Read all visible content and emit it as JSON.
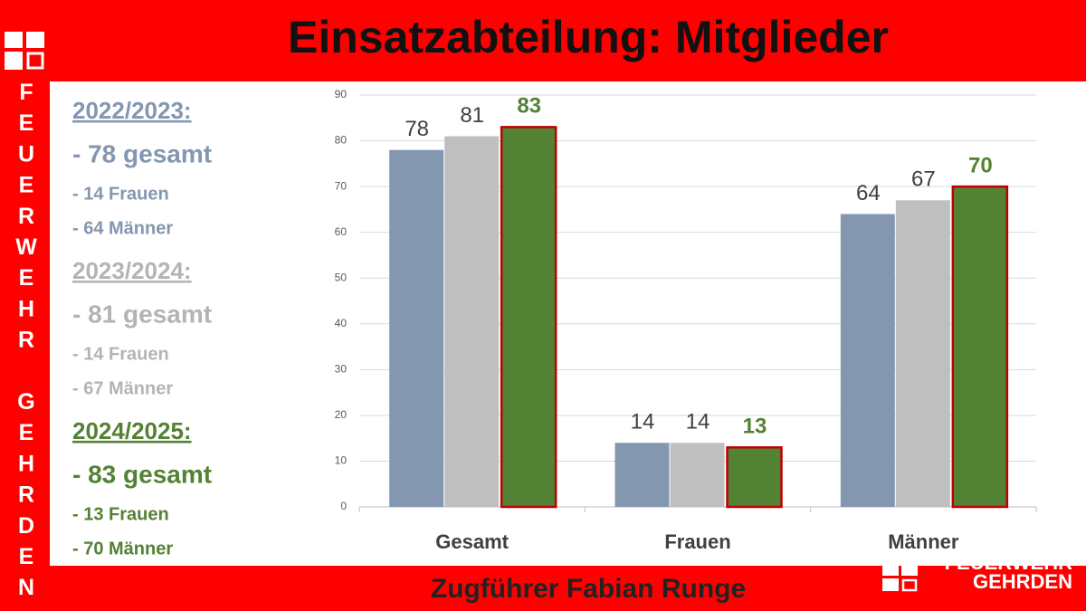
{
  "header": {
    "title": "Einsatzabteilung: Mitglieder"
  },
  "side_text": "FEUERWEHR GEHRDEN",
  "summary": [
    {
      "heading": "2022/2023:",
      "color": "#8497b0",
      "lines": [
        "- 78 gesamt",
        "- 14 Frauen",
        "- 64 Männer"
      ]
    },
    {
      "heading": "2023/2024:",
      "color": "#b4b4b4",
      "lines": [
        "- 81 gesamt",
        "- 14 Frauen",
        "- 67 Männer"
      ]
    },
    {
      "heading": "2024/2025:",
      "color": "#548235",
      "lines": [
        "- 83 gesamt",
        "- 13 Frauen",
        "- 70 Männer"
      ]
    }
  ],
  "footer": {
    "text": "Zugführer Fabian Runge",
    "logo": [
      "FEUERWEHR",
      "GEHRDEN"
    ]
  },
  "chart_data": {
    "type": "bar",
    "categories": [
      "Gesamt",
      "Frauen",
      "Männer"
    ],
    "series": [
      {
        "color": "#8497b0",
        "values": [
          78,
          14,
          64
        ]
      },
      {
        "color": "#bfbfbf",
        "values": [
          81,
          14,
          67
        ]
      },
      {
        "color": "#548235",
        "border": "#c00000",
        "label_color": "#548235",
        "values": [
          83,
          13,
          70
        ]
      }
    ],
    "ylim": [
      0,
      90
    ],
    "yticks": [
      0,
      10,
      20,
      30,
      40,
      50,
      60,
      70,
      80,
      90
    ],
    "grid": true
  }
}
